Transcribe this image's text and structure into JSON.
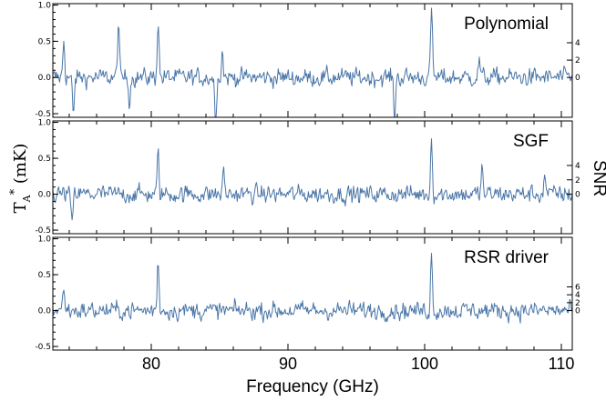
{
  "chart_data": {
    "type": "line",
    "xlabel": "Frequency (GHz)",
    "ylabel_left": {
      "base": "T",
      "sub": "A",
      "sup": "*",
      "unit": "(mK)"
    },
    "ylabel_right": "SNR",
    "xlim": [
      72.8,
      110.8
    ],
    "x_ticks": [
      80,
      90,
      100,
      110
    ],
    "line_color": "#4a76a8",
    "panels": [
      {
        "label": "Polynomial",
        "ylim": [
          -0.55,
          1.02
        ],
        "y_ticks": [
          {
            "v": -0.5,
            "t": "-0.5"
          },
          {
            "v": 0.0,
            "t": "0.0"
          },
          {
            "v": 0.5,
            "t": "0.5"
          },
          {
            "v": 1.0,
            "t": "1.0"
          }
        ],
        "snr_ticks": [
          {
            "v": 0.0,
            "t": "0"
          },
          {
            "v": 0.24,
            "t": "2"
          },
          {
            "v": 0.48,
            "t": "4"
          }
        ],
        "features": [
          {
            "x": 73.6,
            "y": 0.55
          },
          {
            "x": 74.3,
            "y": -0.55
          },
          {
            "x": 77.6,
            "y": 0.82
          },
          {
            "x": 78.4,
            "y": -0.3
          },
          {
            "x": 80.5,
            "y": 0.85
          },
          {
            "x": 84.7,
            "y": -0.55
          },
          {
            "x": 85.2,
            "y": 0.38
          },
          {
            "x": 97.8,
            "y": -0.55
          },
          {
            "x": 100.5,
            "y": 1.0
          },
          {
            "x": 104.0,
            "y": 0.28
          }
        ]
      },
      {
        "label": "SGF",
        "ylim": [
          -0.55,
          1.02
        ],
        "y_ticks": [
          {
            "v": -0.5,
            "t": "-0.5"
          },
          {
            "v": 0.0,
            "t": "0.0"
          },
          {
            "v": 0.5,
            "t": "0.5"
          },
          {
            "v": 1.0,
            "t": "1.0"
          }
        ],
        "snr_ticks": [
          {
            "v": 0.0,
            "t": "0"
          },
          {
            "v": 0.2,
            "t": "2"
          },
          {
            "v": 0.4,
            "t": "4"
          }
        ],
        "features": [
          {
            "x": 74.2,
            "y": -0.45
          },
          {
            "x": 80.5,
            "y": 0.58
          },
          {
            "x": 85.3,
            "y": 0.35
          },
          {
            "x": 100.5,
            "y": 0.8
          },
          {
            "x": 104.2,
            "y": 0.4
          },
          {
            "x": 108.8,
            "y": 0.3
          }
        ]
      },
      {
        "label": "RSR driver",
        "ylim": [
          -0.55,
          1.02
        ],
        "y_ticks": [
          {
            "v": -0.5,
            "t": "-0.5"
          },
          {
            "v": 0.0,
            "t": "0.0"
          },
          {
            "v": 0.5,
            "t": "0.5"
          },
          {
            "v": 1.0,
            "t": "1.0"
          }
        ],
        "snr_ticks": [
          {
            "v": 0.0,
            "t": "0"
          },
          {
            "v": 0.11,
            "t": "2"
          },
          {
            "v": 0.22,
            "t": "4"
          },
          {
            "v": 0.33,
            "t": "6"
          }
        ],
        "features": [
          {
            "x": 73.6,
            "y": 0.38
          },
          {
            "x": 80.5,
            "y": 0.75
          },
          {
            "x": 100.5,
            "y": 0.8
          }
        ]
      }
    ]
  }
}
